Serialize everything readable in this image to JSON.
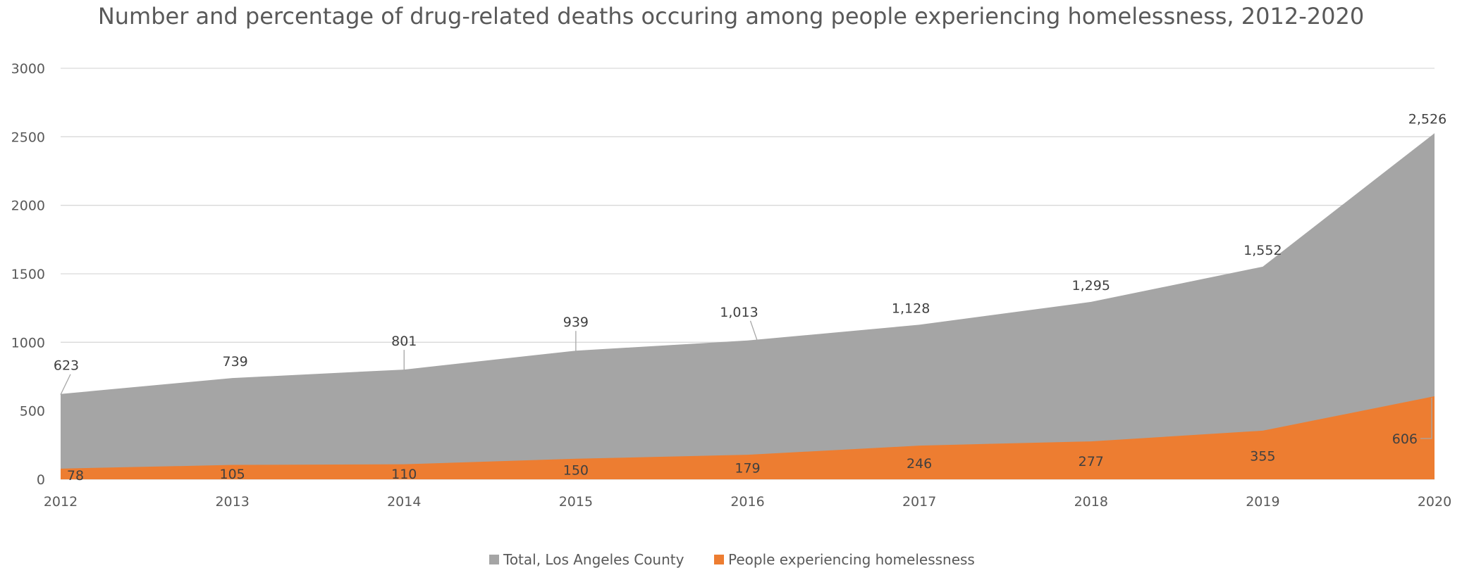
{
  "chart_data": {
    "type": "area",
    "title": "Number and percentage of drug-related deaths occuring among people experiencing homelessness, 2012-2020",
    "x": [
      "2012",
      "2013",
      "2014",
      "2015",
      "2016",
      "2017",
      "2018",
      "2019",
      "2020"
    ],
    "y_ticks": [
      "0",
      "500",
      "1000",
      "1500",
      "2000",
      "2500",
      "3000"
    ],
    "ylim": [
      0,
      3000
    ],
    "grid": true,
    "legend_position": "bottom",
    "series": [
      {
        "name": "Total, Los Angeles County",
        "color": "#a5a5a5",
        "values": [
          623,
          739,
          801,
          939,
          1013,
          1128,
          1295,
          1552,
          2526
        ],
        "labels": [
          "623",
          "739",
          "801",
          "939",
          "1,013",
          "1,128",
          "1,295",
          "1,552",
          "2,526"
        ]
      },
      {
        "name": "People experiencing homelessness",
        "color": "#ed7d31",
        "values": [
          78,
          105,
          110,
          150,
          179,
          246,
          277,
          355,
          606
        ],
        "labels": [
          "78",
          "105",
          "110",
          "150",
          "179",
          "246",
          "277",
          "355",
          "606"
        ]
      }
    ]
  }
}
